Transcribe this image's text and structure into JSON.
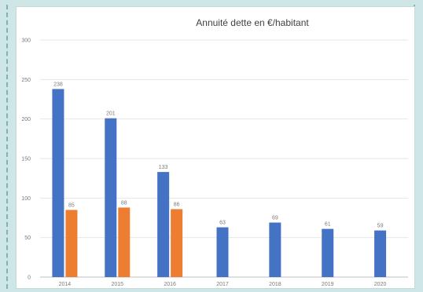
{
  "chart_data": {
    "type": "bar",
    "title": "Annuité dette en €/habitant",
    "categories": [
      "2014",
      "2015",
      "2016",
      "2017",
      "2018",
      "2019",
      "2020"
    ],
    "ylim": [
      0,
      300
    ],
    "yticks": [
      0,
      50,
      100,
      150,
      200,
      250,
      300
    ],
    "grid": true,
    "series": [
      {
        "values": [
          238,
          201,
          133,
          63,
          69,
          61,
          59
        ],
        "color": "#4472c4"
      },
      {
        "values": [
          85,
          88,
          86,
          null,
          null,
          null,
          null
        ],
        "color": "#ed7d31"
      }
    ]
  }
}
